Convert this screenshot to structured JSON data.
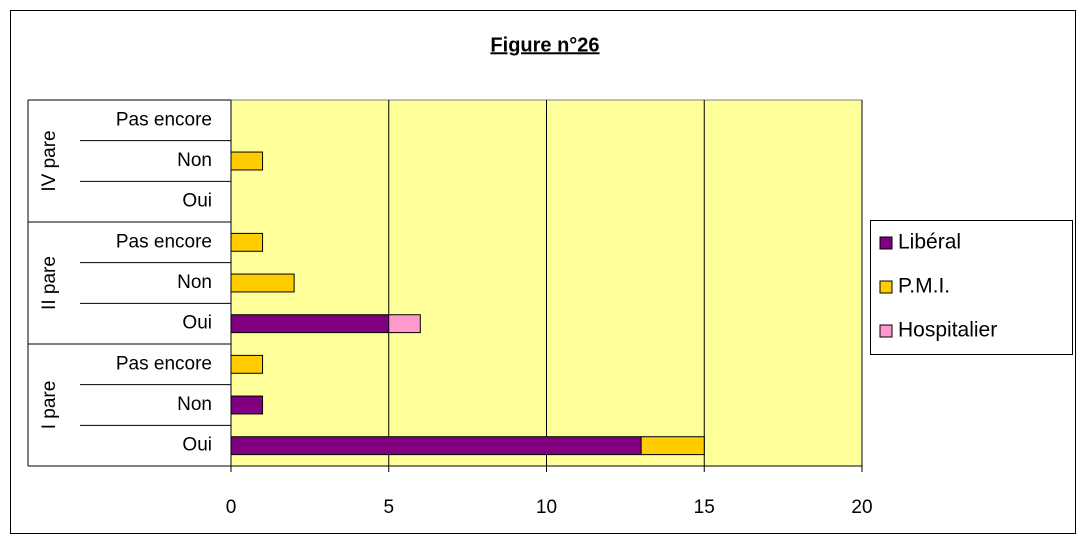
{
  "chart_data": {
    "type": "stacked-barh",
    "title": "Figure n°26",
    "groups": [
      {
        "name": "IV pare",
        "categories": [
          "Pas encore",
          "Non",
          "Oui"
        ]
      },
      {
        "name": "II pare",
        "categories": [
          "Pas encore",
          "Non",
          "Oui"
        ]
      },
      {
        "name": "I pare",
        "categories": [
          "Pas encore",
          "Non",
          "Oui"
        ]
      }
    ],
    "series": [
      {
        "name": "Libéral",
        "color": "#800080",
        "values": [
          0,
          0,
          0,
          0,
          0,
          5,
          0,
          1,
          13
        ]
      },
      {
        "name": "P.M.I.",
        "color": "#ffcc00",
        "values": [
          0,
          1,
          0,
          1,
          2,
          0,
          1,
          0,
          2
        ]
      },
      {
        "name": "Hospitalier",
        "color": "#ff99cc",
        "values": [
          0,
          0,
          0,
          0,
          0,
          1,
          0,
          0,
          0
        ]
      }
    ],
    "xlim": [
      0,
      20
    ],
    "xticks": [
      0,
      5,
      10,
      15,
      20
    ],
    "grid": true,
    "plot_background": "#ffff99",
    "legend": "right"
  }
}
